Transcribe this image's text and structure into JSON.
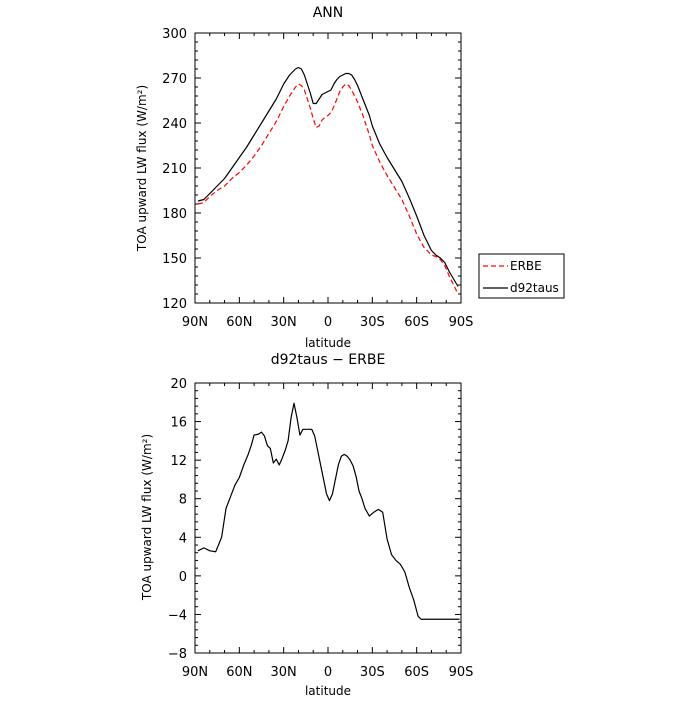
{
  "chart_data": [
    {
      "type": "line",
      "title": "ANN",
      "xlabel": "latitude",
      "ylabel": "TOA upward LW flux (W/m²)",
      "xlim": [
        -90,
        90
      ],
      "ylim": [
        120,
        300
      ],
      "x_reversed": true,
      "xticks": [
        -90,
        -60,
        -30,
        0,
        30,
        60,
        90
      ],
      "xtick_labels": [
        "90N",
        "60N",
        "30N",
        "0",
        "30S",
        "60S",
        "90S"
      ],
      "yticks": [
        120,
        150,
        180,
        210,
        240,
        270,
        300
      ],
      "ytick_labels": [
        "120",
        "150",
        "180",
        "210",
        "240",
        "270",
        "300"
      ],
      "legend_position": "right",
      "series": [
        {
          "name": "ERBE",
          "color": "#ff0000",
          "dash": true,
          "x": [
            -88,
            -84,
            -80,
            -75,
            -70,
            -65,
            -60,
            -55,
            -50,
            -45,
            -40,
            -35,
            -30,
            -26,
            -22,
            -20,
            -18,
            -16,
            -14,
            -12,
            -10,
            -8,
            -6,
            -4,
            -2,
            0,
            2,
            4,
            6,
            8,
            10,
            12,
            14,
            16,
            18,
            20,
            22,
            24,
            26,
            28,
            30,
            35,
            40,
            45,
            50,
            55,
            60,
            65,
            70,
            73,
            76,
            79,
            82,
            85,
            88
          ],
          "y": [
            186,
            187,
            191,
            195,
            198,
            203,
            207,
            212,
            218,
            225,
            233,
            241,
            251,
            258,
            264,
            266,
            265,
            262,
            256,
            250,
            243,
            237,
            238,
            242,
            244,
            245,
            247,
            251,
            256,
            261,
            264,
            266,
            265,
            262,
            258,
            254,
            249,
            244,
            238,
            232,
            225,
            214,
            205,
            197,
            189,
            178,
            166,
            157,
            152,
            151,
            149,
            145,
            138,
            132,
            126
          ]
        },
        {
          "name": "d92taus",
          "color": "#000000",
          "dash": false,
          "x": [
            -88,
            -84,
            -80,
            -75,
            -70,
            -65,
            -60,
            -55,
            -50,
            -45,
            -40,
            -35,
            -30,
            -26,
            -22,
            -20,
            -18,
            -16,
            -14,
            -12,
            -10,
            -8,
            -6,
            -4,
            -2,
            0,
            2,
            4,
            6,
            8,
            10,
            12,
            14,
            16,
            18,
            20,
            22,
            24,
            26,
            28,
            30,
            35,
            40,
            45,
            50,
            55,
            60,
            65,
            70,
            73,
            76,
            79,
            82,
            85,
            88
          ],
          "y": [
            188,
            189,
            193,
            198,
            203,
            210,
            217,
            224,
            232,
            240,
            248,
            256,
            266,
            272,
            276,
            277,
            276,
            272,
            266,
            260,
            253,
            253,
            256,
            259,
            260,
            261,
            262,
            266,
            269,
            271,
            272,
            273,
            273,
            272,
            269,
            265,
            260,
            255,
            250,
            245,
            238,
            226,
            217,
            209,
            201,
            190,
            178,
            165,
            155,
            152,
            150,
            147,
            141,
            136,
            131
          ]
        }
      ]
    },
    {
      "type": "line",
      "title": "d92taus − ERBE",
      "xlabel": "latitude",
      "ylabel": "TOA upward LW flux (W/m²)",
      "xlim": [
        -90,
        90
      ],
      "ylim": [
        -8,
        20
      ],
      "x_reversed": true,
      "xticks": [
        -90,
        -60,
        -30,
        0,
        30,
        60,
        90
      ],
      "xtick_labels": [
        "90N",
        "60N",
        "30N",
        "0",
        "30S",
        "60S",
        "90S"
      ],
      "yticks": [
        -8,
        -4,
        0,
        4,
        8,
        12,
        16,
        20
      ],
      "ytick_labels": [
        "−8",
        "−4",
        "0",
        "4",
        "8",
        "12",
        "16",
        "20"
      ],
      "series": [
        {
          "color": "#000000",
          "dash": false,
          "x": [
            -88,
            -84,
            -80,
            -76,
            -72,
            -69,
            -66,
            -63,
            -60,
            -57,
            -54,
            -52,
            -50,
            -47,
            -45,
            -43,
            -41,
            -39,
            -37,
            -35,
            -33,
            -31,
            -29,
            -27,
            -25,
            -23,
            -21,
            -19,
            -17,
            -15,
            -13,
            -11,
            -9,
            -7,
            -5,
            -3,
            -1,
            1,
            3,
            5,
            7,
            9,
            11,
            13,
            15,
            17,
            19,
            21,
            23,
            25,
            28,
            31,
            34,
            37,
            40,
            43,
            46,
            49,
            52,
            55,
            58,
            61,
            63,
            65,
            67,
            69,
            71,
            73,
            75,
            77,
            79,
            81,
            83,
            85,
            87,
            89
          ],
          "y": [
            2.6,
            2.9,
            2.6,
            2.5,
            4.0,
            7.0,
            8.2,
            9.4,
            10.2,
            11.5,
            12.6,
            13.5,
            14.6,
            14.7,
            14.9,
            14.5,
            13.5,
            13.2,
            11.7,
            12.1,
            11.5,
            12.2,
            13.0,
            14.0,
            16.4,
            17.9,
            16.4,
            14.6,
            15.2,
            15.2,
            15.2,
            15.2,
            14.5,
            13.0,
            11.5,
            10.0,
            8.5,
            7.8,
            8.5,
            10.0,
            11.5,
            12.4,
            12.6,
            12.4,
            12.0,
            11.4,
            10.3,
            8.8,
            8.0,
            7.0,
            6.2,
            6.6,
            6.9,
            6.6,
            3.8,
            2.2,
            1.6,
            1.2,
            0.4,
            -1.2,
            -2.5,
            -4.2,
            -4.5,
            -4.5,
            -4.5,
            -4.5,
            -4.5,
            -4.5,
            -4.5,
            -4.5,
            -4.5,
            -4.5,
            -4.5,
            -4.5,
            -4.5,
            -4.5
          ]
        }
      ]
    }
  ],
  "legend": {
    "items": [
      {
        "label": "ERBE",
        "color": "#ff0000",
        "dash": true
      },
      {
        "label": "d92taus",
        "color": "#000000",
        "dash": false
      }
    ]
  }
}
